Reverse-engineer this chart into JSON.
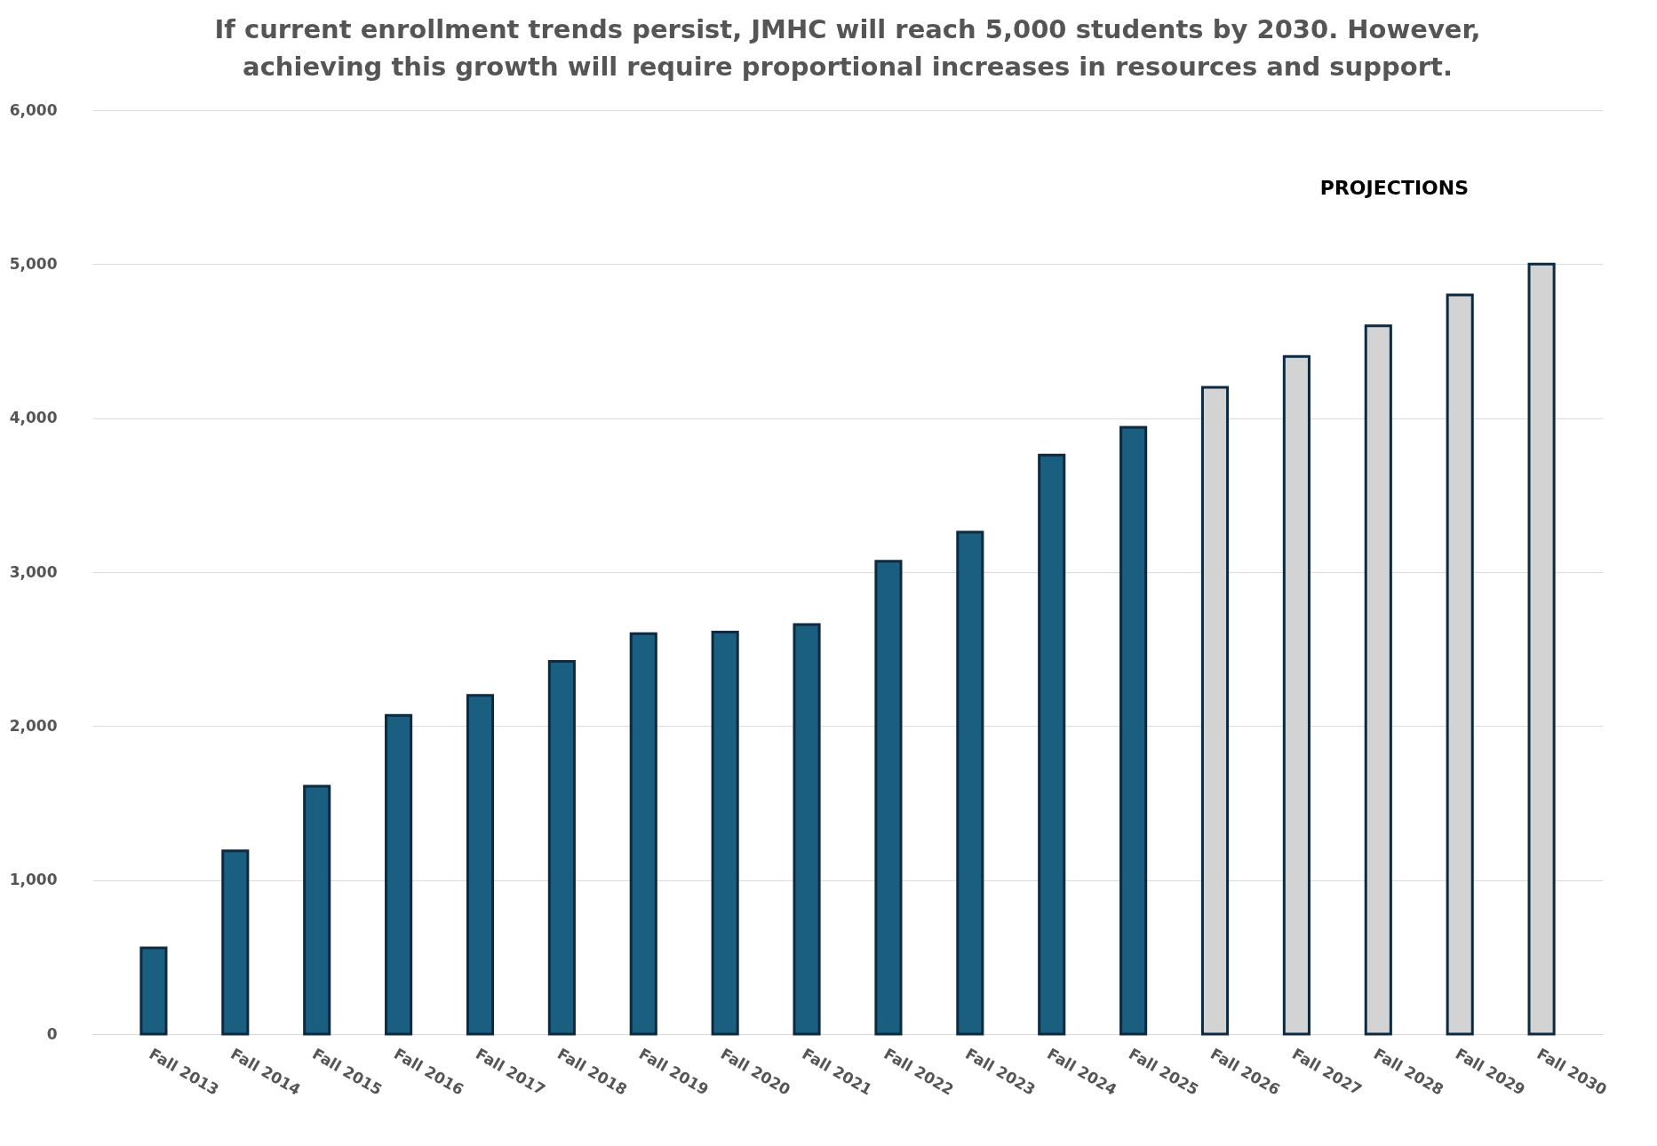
{
  "chart_data": {
    "type": "bar",
    "title": "If current enrollment trends persist, JMHC will reach 5,000 students by 2030. However, achieving this growth will require proportional increases in resources and support.",
    "categories": [
      "Fall 2013",
      "Fall 2014",
      "Fall 2015",
      "Fall 2016",
      "Fall 2017",
      "Fall 2018",
      "Fall 2019",
      "Fall 2020",
      "Fall 2021",
      "Fall 2022",
      "Fall 2023",
      "Fall 2024",
      "Fall 2025",
      "Fall 2026",
      "Fall 2027",
      "Fall 2028",
      "Fall 2029",
      "Fall 2030"
    ],
    "values": [
      560,
      1190,
      1610,
      2070,
      2200,
      2420,
      2600,
      2610,
      2660,
      3070,
      3260,
      3760,
      3940,
      4200,
      4400,
      4600,
      4800,
      5000
    ],
    "colors": [
      "#1a5e80",
      "#1a5e80",
      "#1a5e80",
      "#1a5e80",
      "#1a5e80",
      "#1a5e80",
      "#1a5e80",
      "#1a5e80",
      "#1a5e80",
      "#1a5e80",
      "#1a5e80",
      "#1a5e80",
      "#1a5e80",
      "#d3d3d3",
      "#d3d3d3",
      "#d3d3d3",
      "#d3d3d3",
      "#d3d3d3"
    ],
    "annotations": [
      "PROJECTIONS"
    ],
    "ylim": [
      0,
      6000
    ],
    "yticks": [
      0,
      {
        "value": 1000,
        "label": "1,000"
      },
      {
        "value": 2000,
        "label": "2,000"
      },
      {
        "value": 3000,
        "label": "3,000"
      },
      {
        "value": 4000,
        "label": "4,000"
      },
      {
        "value": 5000,
        "label": "5,000"
      },
      {
        "value": 6000,
        "label": "6,000"
      }
    ],
    "grid": "y"
  }
}
